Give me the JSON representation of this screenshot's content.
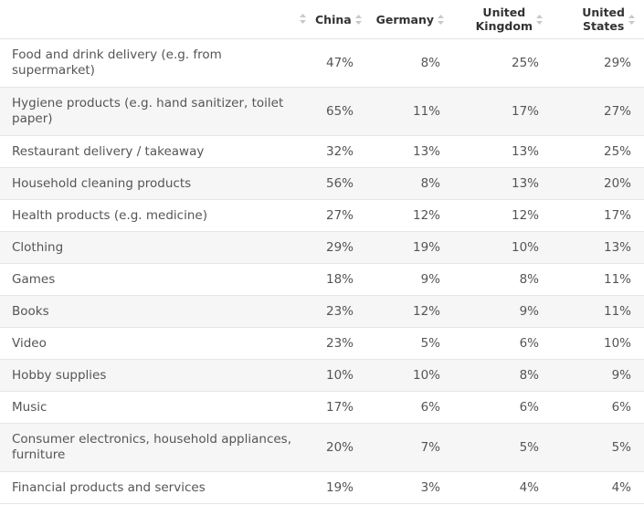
{
  "chart_data": {
    "type": "table",
    "columns": [
      "",
      "China",
      "Germany",
      "United Kingdom",
      "United States"
    ],
    "header_lines": {
      "China": [
        "China"
      ],
      "Germany": [
        "Germany"
      ],
      "United Kingdom": [
        "United",
        "Kingdom"
      ],
      "United States": [
        "United",
        "States"
      ]
    },
    "rows": [
      {
        "category": "Food and drink delivery (e.g. from supermarket)",
        "values": [
          "47%",
          "8%",
          "25%",
          "29%"
        ]
      },
      {
        "category": "Hygiene products (e.g. hand sanitizer, toilet paper)",
        "values": [
          "65%",
          "11%",
          "17%",
          "27%"
        ]
      },
      {
        "category": "Restaurant delivery / takeaway",
        "values": [
          "32%",
          "13%",
          "13%",
          "25%"
        ]
      },
      {
        "category": "Household cleaning products",
        "values": [
          "56%",
          "8%",
          "13%",
          "20%"
        ]
      },
      {
        "category": "Health products (e.g. medicine)",
        "values": [
          "27%",
          "12%",
          "12%",
          "17%"
        ]
      },
      {
        "category": "Clothing",
        "values": [
          "29%",
          "19%",
          "10%",
          "13%"
        ]
      },
      {
        "category": "Games",
        "values": [
          "18%",
          "9%",
          "8%",
          "11%"
        ]
      },
      {
        "category": "Books",
        "values": [
          "23%",
          "12%",
          "9%",
          "11%"
        ]
      },
      {
        "category": "Video",
        "values": [
          "23%",
          "5%",
          "6%",
          "10%"
        ]
      },
      {
        "category": "Hobby supplies",
        "values": [
          "10%",
          "10%",
          "8%",
          "9%"
        ]
      },
      {
        "category": "Music",
        "values": [
          "17%",
          "6%",
          "6%",
          "6%"
        ]
      },
      {
        "category": "Consumer electronics, household appliances, furniture",
        "values": [
          "20%",
          "7%",
          "5%",
          "5%"
        ]
      },
      {
        "category": "Financial products and services",
        "values": [
          "19%",
          "3%",
          "4%",
          "4%"
        ]
      }
    ]
  },
  "icons": {
    "sort": "sort-arrows-icon"
  },
  "colors": {
    "header_text": "#333333",
    "body_text": "#555555",
    "stripe": "#f6f6f6",
    "border": "#e6e6e6",
    "sort_icon": "#c8c8c8"
  }
}
